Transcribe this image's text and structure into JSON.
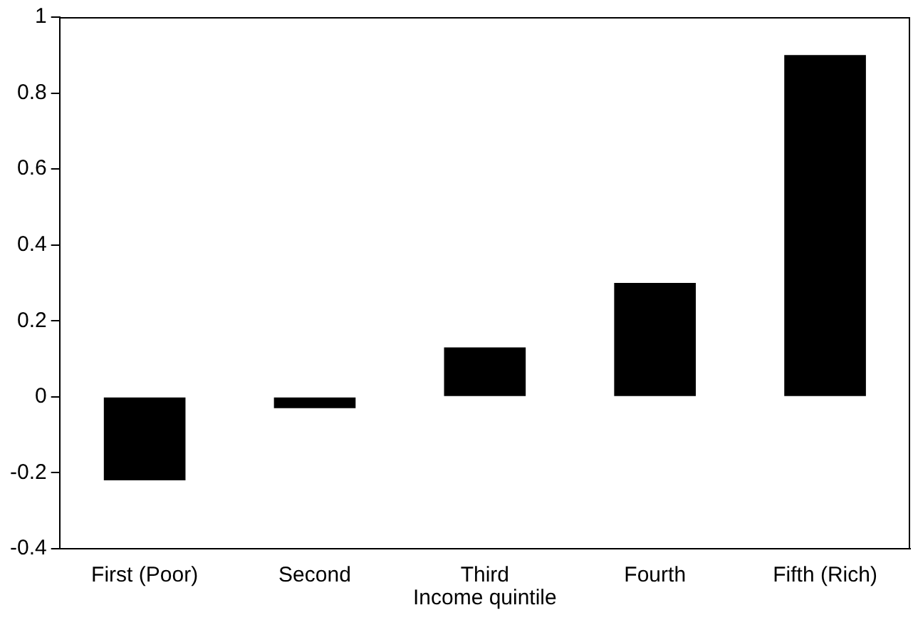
{
  "chart_data": {
    "type": "bar",
    "xlabel": "Income quintile",
    "categories": [
      "First (Poor)",
      "Second",
      "Third",
      "Fourth",
      "Fifth (Rich)"
    ],
    "values": [
      -0.22,
      -0.03,
      0.13,
      0.3,
      0.9
    ],
    "color": "#000000",
    "ylim": [
      -0.4,
      1
    ],
    "yticks": [
      {
        "value": -0.4,
        "label": "-0.4"
      },
      {
        "value": -0.2,
        "label": "-0.2"
      },
      0,
      0.2,
      0.4,
      0.6,
      0.8,
      1
    ],
    "grid": false,
    "legend": false
  }
}
